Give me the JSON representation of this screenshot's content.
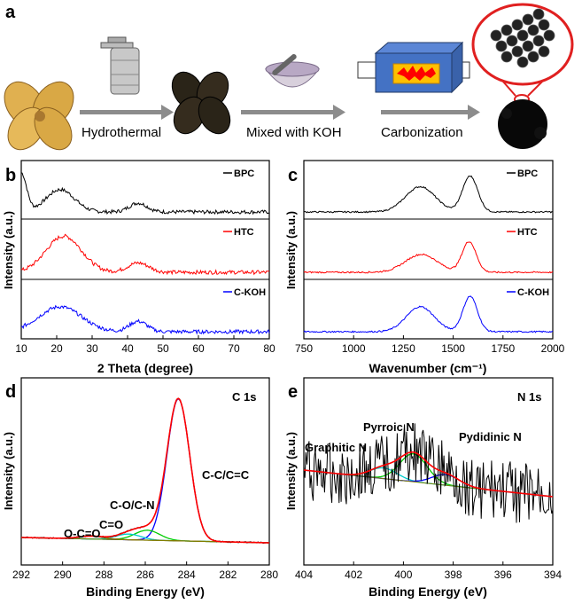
{
  "panel_a": {
    "label": "a",
    "steps": [
      "Hydrothermal",
      "Mixed with KOH",
      "Carbonization"
    ],
    "colors": {
      "arrow": "#8c8c8c",
      "furnace": "#4472c4",
      "furnace_inner": "#ffc000",
      "flame": "#ff0000",
      "zoom_circle": "#e02020"
    }
  },
  "chart_data": [
    {
      "panel": "b",
      "type": "line",
      "title": "",
      "xlabel": "2 Theta (degree)",
      "ylabel": "Intensity (a.u.)",
      "xlim": [
        10,
        80
      ],
      "xticks": [
        10,
        20,
        30,
        40,
        50,
        60,
        70,
        80
      ],
      "series": [
        {
          "name": "BPC",
          "color": "#000000",
          "peaks": [
            [
              10,
              0.95,
              1.5
            ],
            [
              21,
              0.55,
              4
            ],
            [
              43,
              0.22,
              2.5
            ]
          ]
        },
        {
          "name": "HTC",
          "color": "#ff0000",
          "peaks": [
            [
              22,
              0.85,
              5
            ],
            [
              43,
              0.22,
              3
            ]
          ]
        },
        {
          "name": "C-KOH",
          "color": "#0000ff",
          "peaks": [
            [
              21,
              0.6,
              6
            ],
            [
              43,
              0.25,
              2.5
            ]
          ]
        }
      ]
    },
    {
      "panel": "c",
      "type": "line",
      "title": "",
      "xlabel": "Wavenumber (cm⁻¹)",
      "ylabel": "Intensity (a.u.)",
      "xlim": [
        750,
        2000
      ],
      "xticks": [
        750,
        1000,
        1250,
        1500,
        1750,
        2000
      ],
      "series": [
        {
          "name": "BPC",
          "color": "#000000",
          "peaks": [
            [
              1335,
              0.62,
              75
            ],
            [
              1585,
              0.88,
              38
            ]
          ]
        },
        {
          "name": "HTC",
          "color": "#ff0000",
          "peaks": [
            [
              1340,
              0.42,
              80
            ],
            [
              1580,
              0.72,
              35
            ]
          ]
        },
        {
          "name": "C-KOH",
          "color": "#0000ff",
          "peaks": [
            [
              1335,
              0.6,
              70
            ],
            [
              1585,
              0.85,
              36
            ]
          ]
        }
      ]
    },
    {
      "panel": "d",
      "type": "line",
      "title": "C 1s",
      "xlabel": "Binding Energy (eV)",
      "ylabel": "Intensity (a.u.)",
      "xlim": [
        292,
        280
      ],
      "xticks": [
        292,
        290,
        288,
        286,
        284,
        282,
        280
      ],
      "components": [
        {
          "name": "C-C/C=C",
          "center": 284.4,
          "height": 1.0,
          "width": 0.55,
          "color": "#0000ff"
        },
        {
          "name": "C-O/C-N",
          "center": 285.9,
          "height": 0.07,
          "width": 0.6,
          "color": "#00cc00"
        },
        {
          "name": "C=O",
          "center": 286.8,
          "height": 0.04,
          "width": 0.6,
          "color": "#00cccc"
        },
        {
          "name": "O-C=O",
          "center": 288.6,
          "height": 0.02,
          "width": 0.6,
          "color": "#996600"
        }
      ],
      "labels": [
        "C-C/C=C",
        "C-O/C-N",
        "C=O",
        "O-C=O"
      ]
    },
    {
      "panel": "e",
      "type": "line",
      "title": "N 1s",
      "xlabel": "Binding Energy (eV)",
      "ylabel": "Intensity (a.u.)",
      "xlim": [
        404,
        394
      ],
      "xticks": [
        404,
        402,
        400,
        398,
        396,
        394
      ],
      "components": [
        {
          "name": "Pyrroic N",
          "center": 399.6,
          "height": 0.42,
          "width": 0.55,
          "color": "#00cc00"
        },
        {
          "name": "Graphitic N",
          "center": 400.8,
          "height": 0.16,
          "width": 0.55,
          "color": "#00cccc"
        },
        {
          "name": "Pydidinic N",
          "center": 398.3,
          "height": 0.16,
          "width": 0.55,
          "color": "#0000ff"
        }
      ],
      "labels": [
        "Graphitic N",
        "Pyrroic N",
        "Pydidinic N"
      ]
    }
  ]
}
